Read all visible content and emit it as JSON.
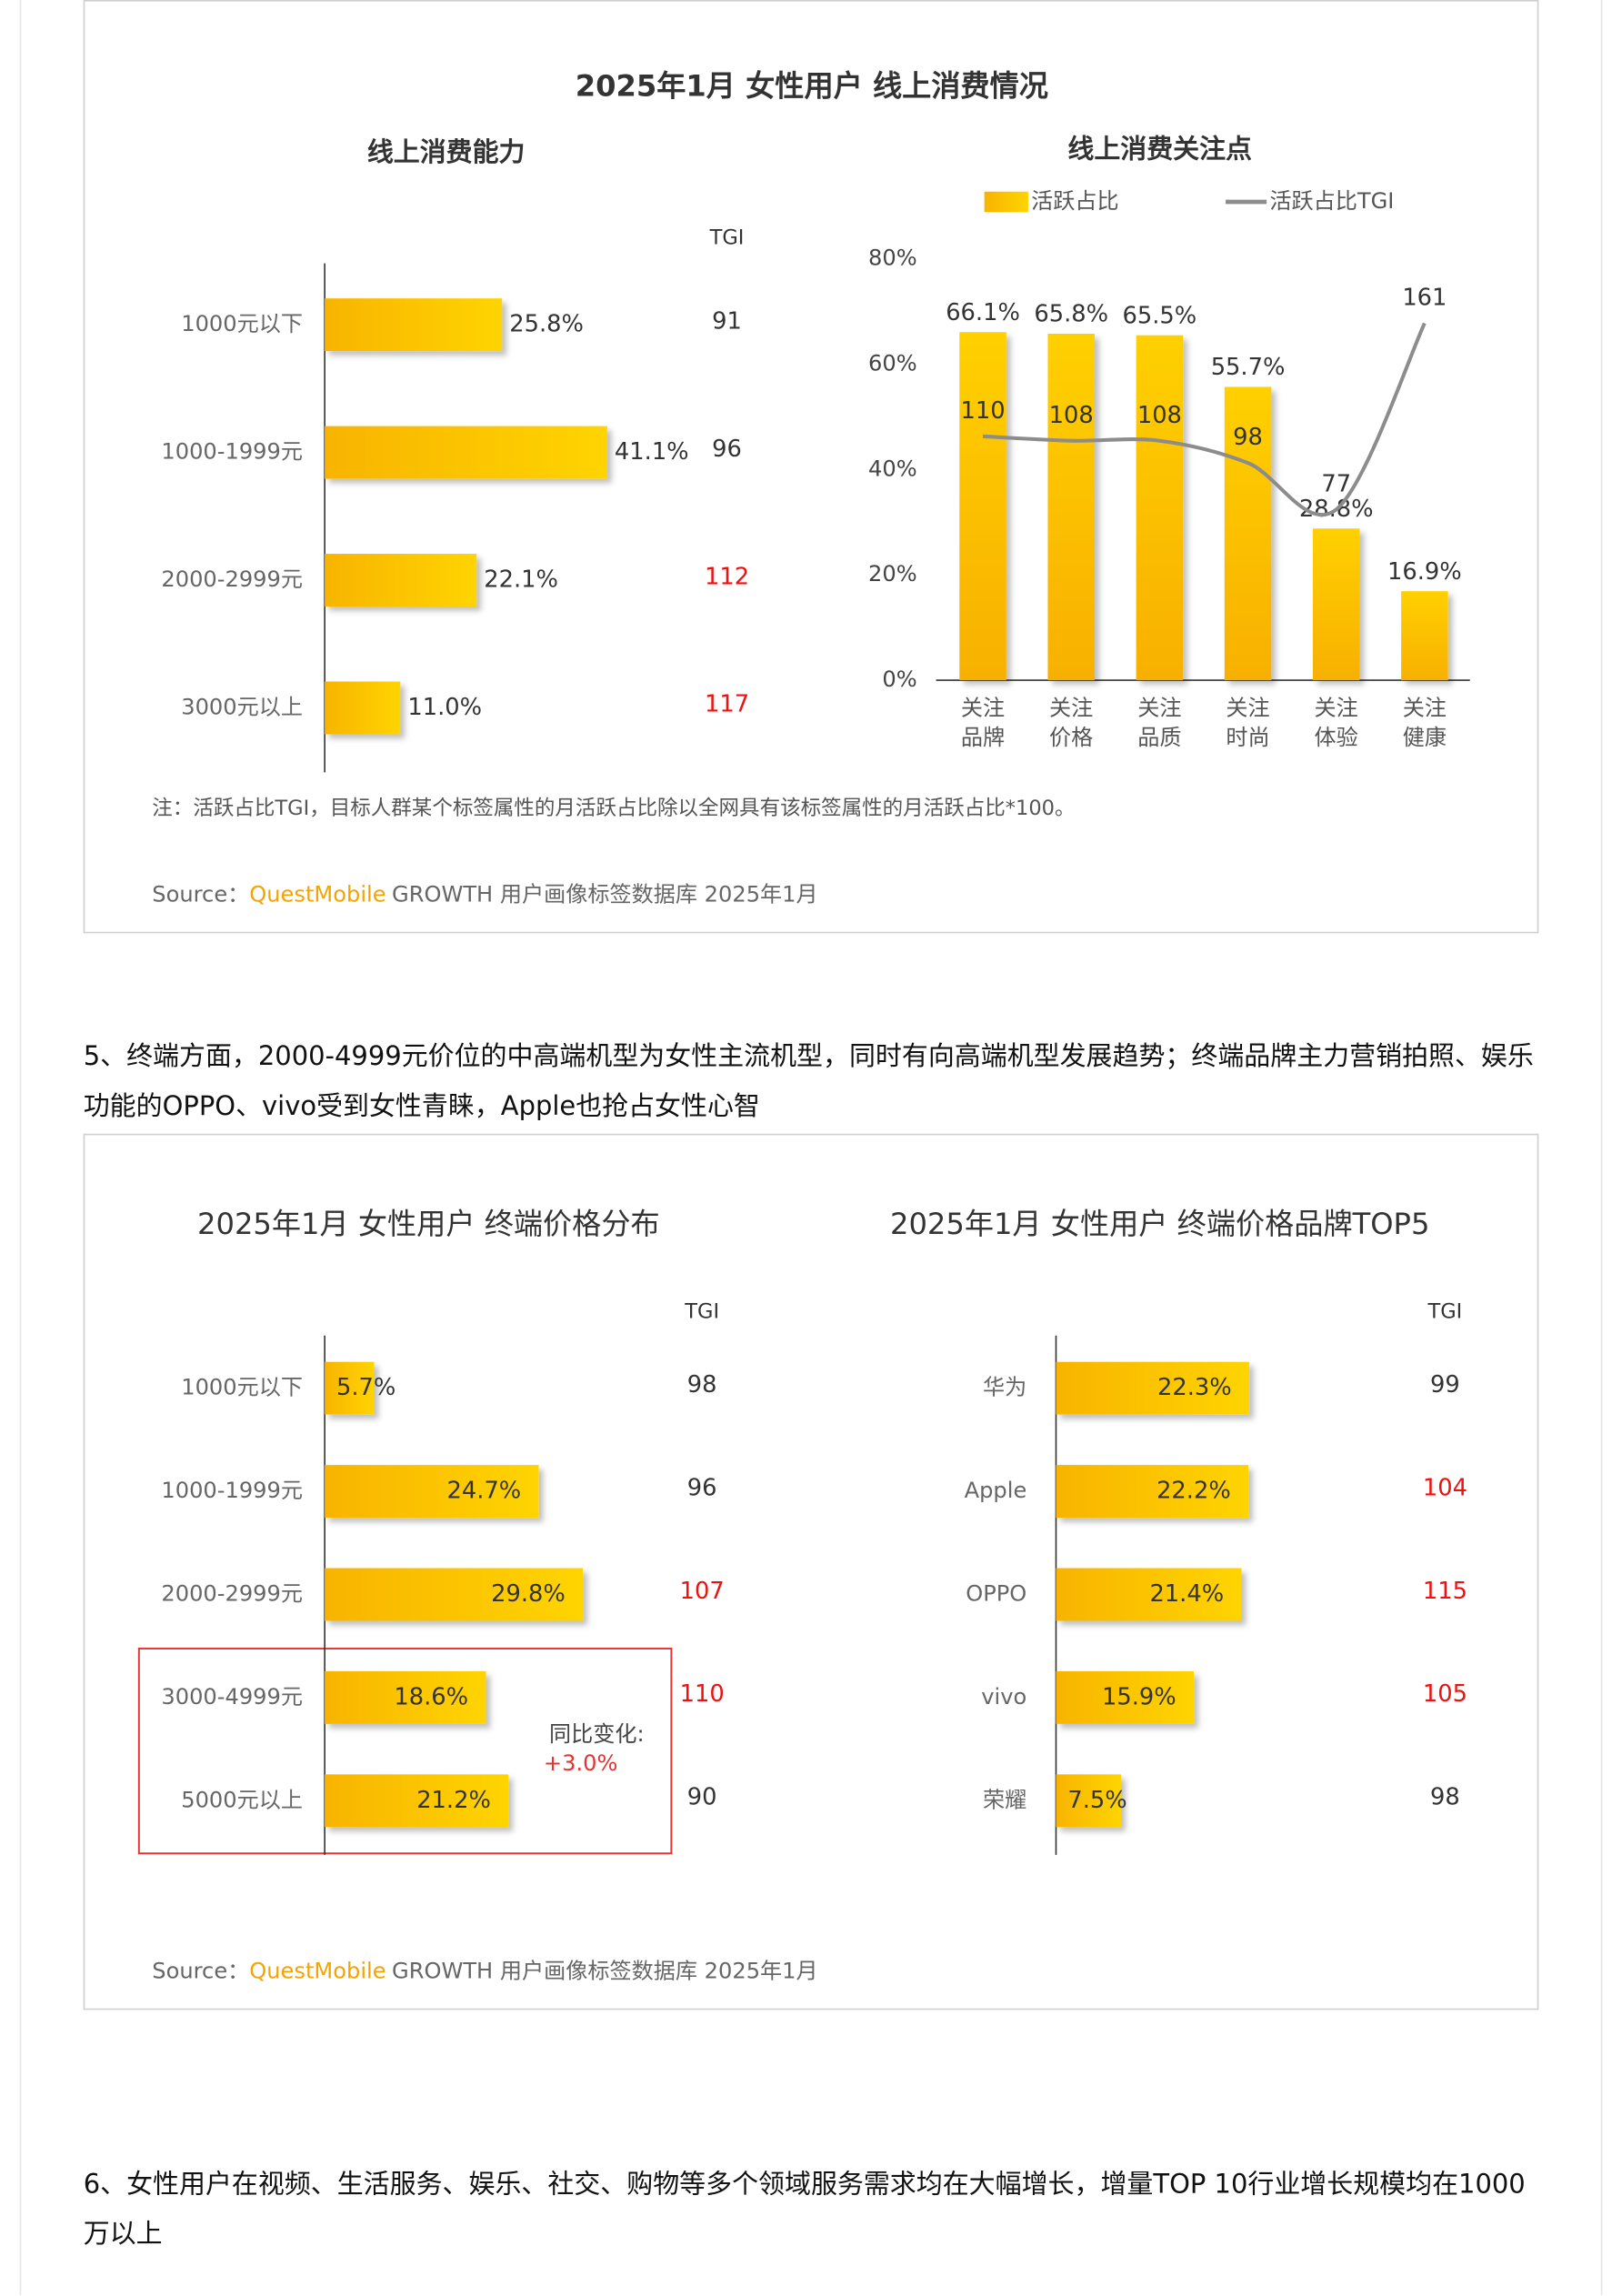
{
  "panels": [
    {
      "title": "2025年1月 女性用户 线上消费情况",
      "note": "注：活跃占比TGI，目标人群某个标签属性的月活跃占比除以全网具有该标签属性的月活跃占比*100。",
      "source": {
        "prefix": "Source：",
        "brand": "QuestMobile",
        "text": "GROWTH 用户画像标签数据库 2025年1月"
      }
    },
    {
      "source": {
        "prefix": "Source：",
        "brand": "QuestMobile",
        "text": "GROWTH 用户画像标签数据库 2025年1月"
      }
    }
  ],
  "paragraphs": [
    "5、终端方面，2000-4999元价位的中高端机型为女性主流机型，同时有向高端机型发展趋势；终端品牌主力营销拍照、娱乐功能的OPPO、vivo受到女性青睐，Apple也抢占女性心智",
    "6、女性用户在视频、生活服务、娱乐、社交、购物等多个领域服务需求均在大幅增长，增量TOP 10行业增长规模均在1000万以上"
  ],
  "chart_data": [
    {
      "type": "barh",
      "title": "线上消费能力",
      "categories": [
        "1000元以下",
        "1000-1999元",
        "2000-2999元",
        "3000元以上"
      ],
      "values": [
        25.8,
        41.1,
        22.1,
        11.0
      ],
      "value_labels": [
        "25.8%",
        "41.1%",
        "22.1%",
        "11.0%"
      ],
      "xlim": [
        0,
        50
      ],
      "color": "#ffc000",
      "tgi_label": "TGI",
      "tgi": [
        91,
        96,
        112,
        117
      ],
      "tgi_colors": [
        "#333333",
        "#333333",
        "#ee1111",
        "#ee1111"
      ]
    },
    {
      "type": "bar",
      "title": "线上消费关注点",
      "categories": [
        "关注品牌",
        "关注价格",
        "关注品质",
        "关注时尚",
        "关注体验",
        "关注健康"
      ],
      "series": [
        {
          "name": "活跃占比",
          "type": "bar",
          "color": "#ffc000",
          "values": [
            66.1,
            65.8,
            65.5,
            55.7,
            28.8,
            16.9
          ],
          "value_labels": [
            "66.1%",
            "65.8%",
            "65.5%",
            "55.7%",
            "28.8%",
            "16.9%"
          ]
        },
        {
          "name": "活跃占比TGI",
          "type": "line",
          "axis": "y2",
          "color": "#8c8c8c",
          "values": [
            110,
            108,
            108,
            98,
            77,
            161
          ]
        }
      ],
      "ylim": [
        0,
        80
      ],
      "yticks": [
        {
          "value": 0,
          "label": "0%"
        },
        {
          "value": 20,
          "label": "20%"
        },
        {
          "value": 40,
          "label": "40%"
        },
        {
          "value": 60,
          "label": "60%"
        },
        {
          "value": 80,
          "label": "80%"
        }
      ],
      "y2lim": [
        0,
        190
      ]
    },
    {
      "type": "barh",
      "title": "2025年1月 女性用户 终端价格分布",
      "categories": [
        "1000元以下",
        "1000-1999元",
        "2000-2999元",
        "3000-4999元",
        "5000元以上"
      ],
      "values": [
        5.7,
        24.7,
        29.8,
        18.6,
        21.2
      ],
      "value_labels": [
        "5.7%",
        "24.7%",
        "29.8%",
        "18.6%",
        "21.2%"
      ],
      "xlim": [
        0,
        40
      ],
      "color": "#ffc000",
      "tgi_label": "TGI",
      "tgi": [
        98,
        96,
        107,
        110,
        90
      ],
      "tgi_colors": [
        "#333333",
        "#333333",
        "#ee1111",
        "#ee1111",
        "#333333"
      ],
      "annotation": [
        "同比变化:",
        "+3.0%"
      ]
    },
    {
      "type": "barh",
      "title": "2025年1月 女性用户 终端价格品牌TOP5",
      "categories": [
        "华为",
        "Apple",
        "OPPO",
        "vivo",
        "荣耀"
      ],
      "values": [
        22.3,
        22.2,
        21.4,
        15.9,
        7.5
      ],
      "value_labels": [
        "22.3%",
        "22.2%",
        "21.4%",
        "15.9%",
        "7.5%"
      ],
      "xlim": [
        0,
        40
      ],
      "color": "#ffc000",
      "tgi_label": "TGI",
      "tgi": [
        99,
        104,
        115,
        105,
        98
      ],
      "tgi_colors": [
        "#333333",
        "#ee1111",
        "#ee1111",
        "#ee1111",
        "#333333"
      ]
    }
  ]
}
